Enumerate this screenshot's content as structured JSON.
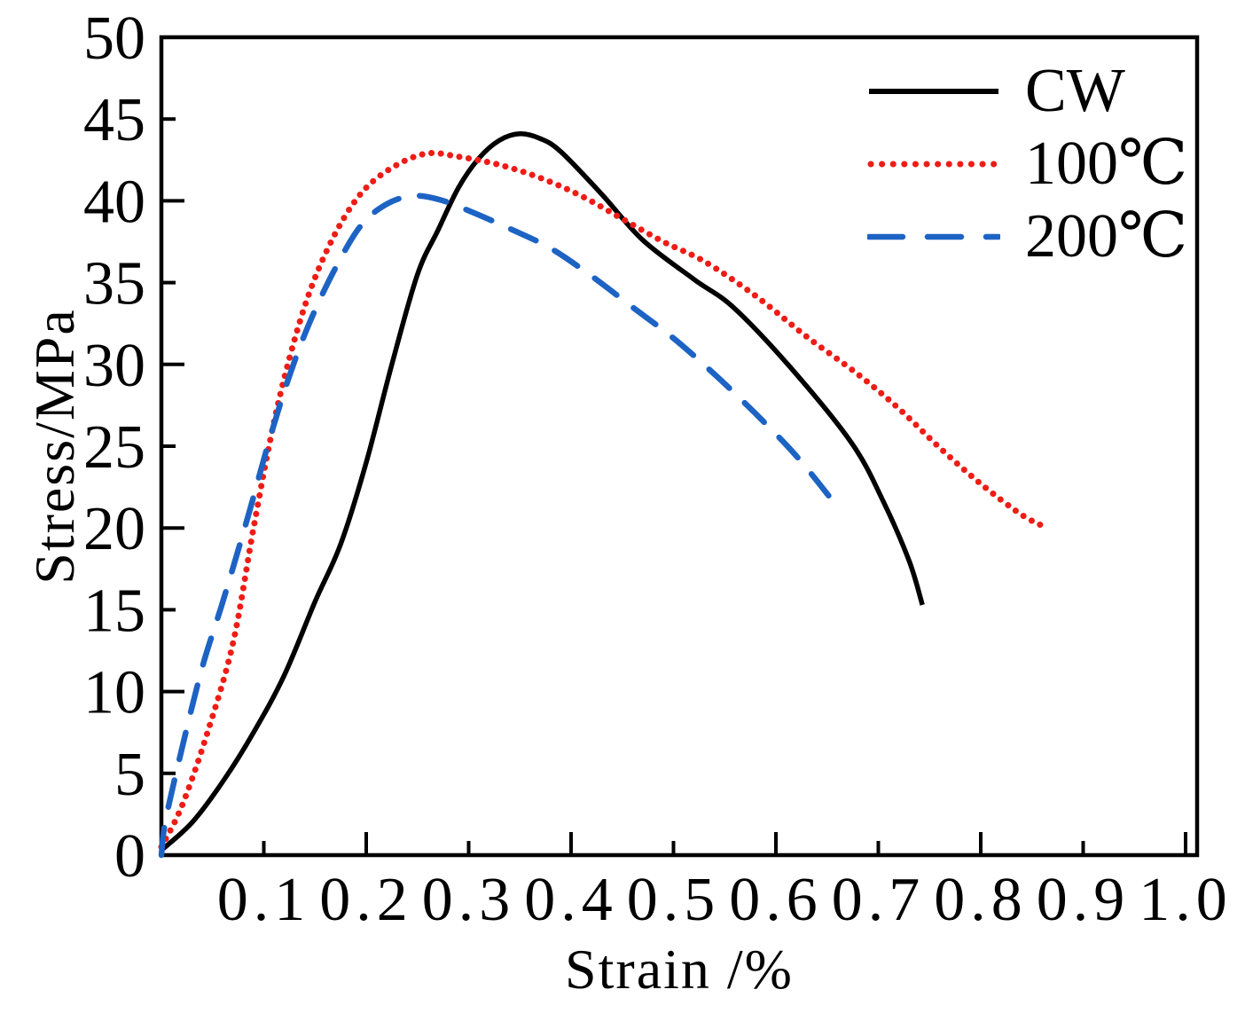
{
  "figure": {
    "background_color": "#ffffff",
    "frame_color": "#000000"
  },
  "chart_data": {
    "type": "line",
    "title": "",
    "xlabel": "Strain /%",
    "ylabel": "Stress/MPa",
    "xlim": [
      0,
      1.012
    ],
    "ylim": [
      0,
      50
    ],
    "grid": false,
    "legend_position": "top-right",
    "x_tick_values": [
      0.1,
      0.2,
      0.3,
      0.4,
      0.5,
      0.6,
      0.7,
      0.8,
      0.9,
      1.0
    ],
    "x_tick_labels": [
      "0.1",
      "0.2",
      "0.3",
      "0.4",
      "0.5",
      "0.6",
      "0.7",
      "0.8",
      "0.9",
      "1.0"
    ],
    "y_tick_values": [
      0,
      5,
      10,
      15,
      20,
      25,
      30,
      35,
      40,
      45,
      50
    ],
    "y_tick_labels": [
      "0",
      "5",
      "10",
      "15",
      "20",
      "25",
      "30",
      "35",
      "40",
      "45",
      "50"
    ],
    "series": [
      {
        "name": "CW",
        "color": "#000000",
        "line_style": "solid",
        "points": [
          [
            0,
            0.3
          ],
          [
            0.03,
            2
          ],
          [
            0.06,
            4.5
          ],
          [
            0.09,
            7.5
          ],
          [
            0.12,
            11
          ],
          [
            0.15,
            15.5
          ],
          [
            0.175,
            19
          ],
          [
            0.2,
            24
          ],
          [
            0.225,
            30
          ],
          [
            0.25,
            35.5
          ],
          [
            0.27,
            38.2
          ],
          [
            0.29,
            40.8
          ],
          [
            0.31,
            42.6
          ],
          [
            0.33,
            43.7
          ],
          [
            0.35,
            44.1
          ],
          [
            0.37,
            43.8
          ],
          [
            0.39,
            43
          ],
          [
            0.43,
            40.4
          ],
          [
            0.47,
            37.6
          ],
          [
            0.52,
            35.2
          ],
          [
            0.56,
            33.4
          ],
          [
            0.62,
            29.4
          ],
          [
            0.675,
            25.1
          ],
          [
            0.705,
            21.6
          ],
          [
            0.73,
            18
          ],
          [
            0.743,
            15.3
          ]
        ]
      },
      {
        "name": "100℃",
        "color": "#ee1c16",
        "line_style": "dotted",
        "points": [
          [
            0,
            0.5
          ],
          [
            0.02,
            3
          ],
          [
            0.045,
            7.5
          ],
          [
            0.07,
            13
          ],
          [
            0.09,
            20
          ],
          [
            0.11,
            26.5
          ],
          [
            0.13,
            31.5
          ],
          [
            0.15,
            35.3
          ],
          [
            0.175,
            38.6
          ],
          [
            0.2,
            40.8
          ],
          [
            0.23,
            42.2
          ],
          [
            0.26,
            42.9
          ],
          [
            0.29,
            42.7
          ],
          [
            0.33,
            42.2
          ],
          [
            0.37,
            41.4
          ],
          [
            0.41,
            40.3
          ],
          [
            0.45,
            38.9
          ],
          [
            0.49,
            37.5
          ],
          [
            0.53,
            36.3
          ],
          [
            0.58,
            34.2
          ],
          [
            0.63,
            31.7
          ],
          [
            0.68,
            29.4
          ],
          [
            0.72,
            27.3
          ],
          [
            0.76,
            24.9
          ],
          [
            0.8,
            22.7
          ],
          [
            0.84,
            20.8
          ],
          [
            0.865,
            20
          ]
        ]
      },
      {
        "name": "200℃",
        "color": "#1d63c4",
        "line_style": "dashed",
        "points": [
          [
            0,
            0
          ],
          [
            0.004,
            2.1
          ],
          [
            0.02,
            6.5
          ],
          [
            0.04,
            11.5
          ],
          [
            0.06,
            15.5
          ],
          [
            0.085,
            20.8
          ],
          [
            0.105,
            25.3
          ],
          [
            0.125,
            29.3
          ],
          [
            0.145,
            32.6
          ],
          [
            0.17,
            35.9
          ],
          [
            0.195,
            38.5
          ],
          [
            0.22,
            39.8
          ],
          [
            0.245,
            40.3
          ],
          [
            0.27,
            40.1
          ],
          [
            0.3,
            39.4
          ],
          [
            0.34,
            38.3
          ],
          [
            0.38,
            37.1
          ],
          [
            0.42,
            35.4
          ],
          [
            0.46,
            33.5
          ],
          [
            0.5,
            31.6
          ],
          [
            0.54,
            29.4
          ],
          [
            0.58,
            27
          ],
          [
            0.62,
            24.4
          ],
          [
            0.655,
            21.7
          ]
        ]
      }
    ]
  }
}
